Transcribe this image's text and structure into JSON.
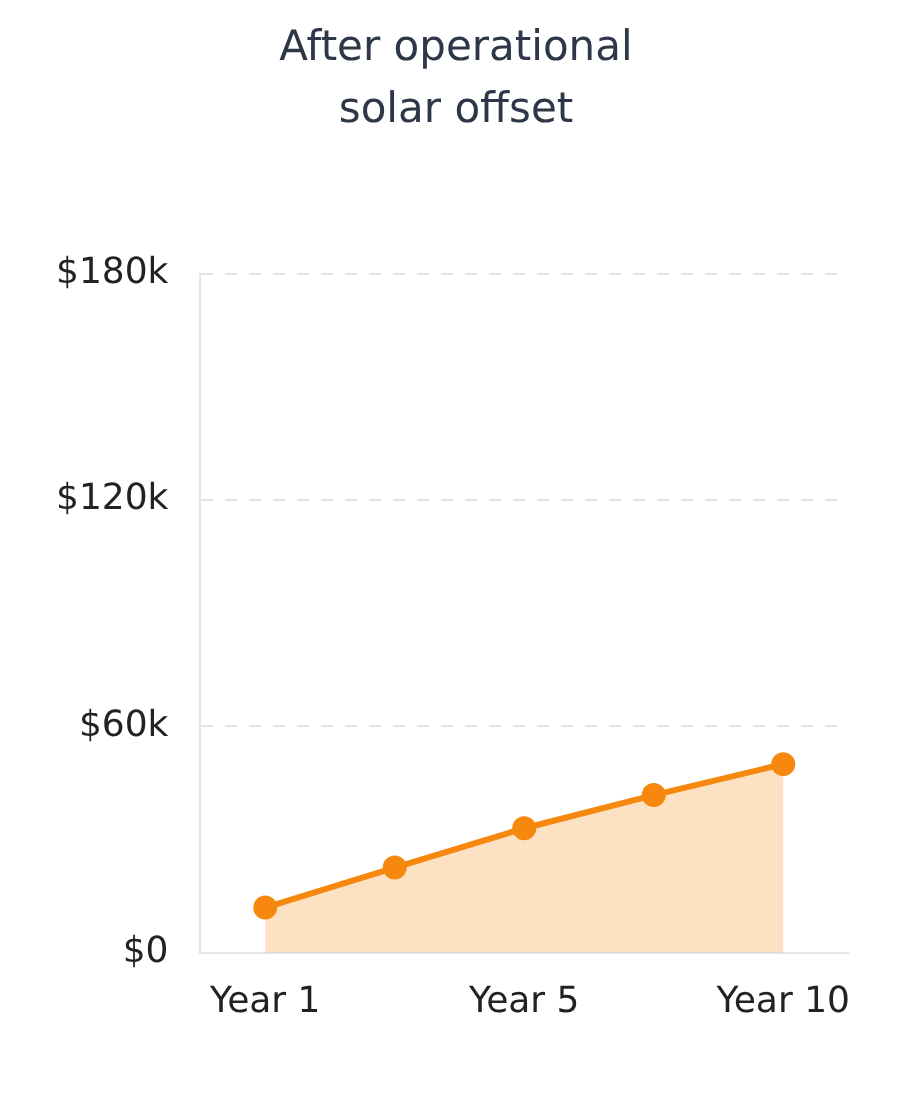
{
  "chart_data": {
    "type": "area",
    "title": "After operational solar offset",
    "categories": [
      "Year 1",
      null,
      "Year 5",
      null,
      "Year 10"
    ],
    "series": [
      {
        "color": "#f7880f",
        "values": [
          12,
          22.6,
          33,
          41.8,
          50
        ]
      }
    ],
    "ylim": [
      0,
      180
    ],
    "yticks": [
      {
        "value": 0,
        "label": "$0"
      },
      {
        "value": 60,
        "label": "$60k"
      },
      {
        "value": 120,
        "label": "$120k"
      },
      {
        "value": 180,
        "label": "$180k"
      }
    ],
    "grid": "y",
    "marker": "circle",
    "legend": false
  }
}
